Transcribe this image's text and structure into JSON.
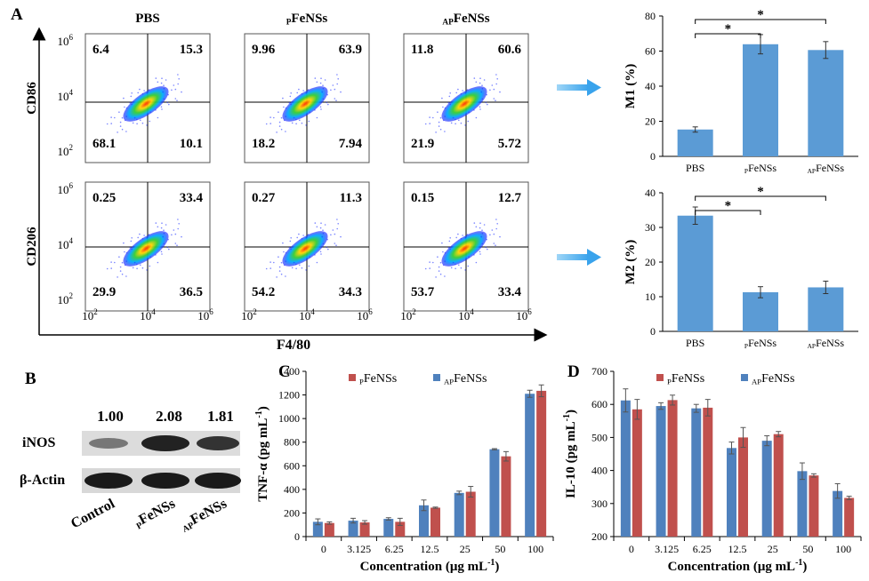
{
  "panel_letters": {
    "a": "A",
    "b": "B",
    "c": "C",
    "d": "D"
  },
  "flow": {
    "columns": [
      {
        "name": "PBS",
        "prefix": "",
        "body": "PBS"
      },
      {
        "name": "PFeNSs",
        "prefix": "P",
        "body": "FeNSs"
      },
      {
        "name": "APFeNSs",
        "prefix": "AP",
        "body": "FeNSs"
      }
    ],
    "rows": [
      {
        "ylabel": "CD86",
        "quadrants": [
          [
            "6.4",
            "15.3",
            "68.1",
            "10.1"
          ],
          [
            "9.96",
            "63.9",
            "18.2",
            "7.94"
          ],
          [
            "11.8",
            "60.6",
            "21.9",
            "5.72"
          ]
        ]
      },
      {
        "ylabel": "CD206",
        "quadrants": [
          [
            "0.25",
            "33.4",
            "29.9",
            "36.5"
          ],
          [
            "0.27",
            "11.3",
            "54.2",
            "34.3"
          ],
          [
            "0.15",
            "12.7",
            "53.7",
            "33.4"
          ]
        ]
      }
    ],
    "xlabel": "F4/80",
    "tick_base": "10",
    "tick_exps": [
      "2",
      "4",
      "6"
    ]
  },
  "chart_data": [
    {
      "type": "bar",
      "panel": "A-top",
      "ylabel": "M1 (%)",
      "categories": [
        "PBS",
        "PFeNSs",
        "APFeNSs"
      ],
      "category_parts": [
        [
          "",
          "PBS"
        ],
        [
          "P",
          "FeNSs"
        ],
        [
          "AP",
          "FeNSs"
        ]
      ],
      "values": [
        15.3,
        63.9,
        60.6
      ],
      "errors": [
        1.5,
        5.5,
        4.8
      ],
      "ylim": [
        0,
        80
      ],
      "yticks": [
        0,
        20,
        40,
        60,
        80
      ],
      "significance": [
        {
          "from": 0,
          "to": 1,
          "label": "*"
        },
        {
          "from": 0,
          "to": 2,
          "label": "*"
        }
      ],
      "color": "#5b9bd5"
    },
    {
      "type": "bar",
      "panel": "A-bottom",
      "ylabel": "M2 (%)",
      "categories": [
        "PBS",
        "PFeNSs",
        "APFeNSs"
      ],
      "category_parts": [
        [
          "",
          "PBS"
        ],
        [
          "P",
          "FeNSs"
        ],
        [
          "AP",
          "FeNSs"
        ]
      ],
      "values": [
        33.4,
        11.3,
        12.7
      ],
      "errors": [
        2.5,
        1.6,
        1.8
      ],
      "ylim": [
        0,
        40
      ],
      "yticks": [
        0,
        10,
        20,
        30,
        40
      ],
      "significance": [
        {
          "from": 0,
          "to": 1,
          "label": "*"
        },
        {
          "from": 0,
          "to": 2,
          "label": "*"
        }
      ],
      "color": "#5b9bd5"
    },
    {
      "type": "bar",
      "panel": "C",
      "ylabel": "TNF-α (pg mL",
      "ylabel_sup": "-1",
      "ylabel_end": ")",
      "xlabel": "Concentration (μg mL",
      "xlabel_sup": "-1",
      "xlabel_end": ")",
      "categories": [
        "0",
        "3.125",
        "6.25",
        "12.5",
        "25",
        "50",
        "100"
      ],
      "ylim": [
        0,
        1400
      ],
      "yticks": [
        0,
        200,
        400,
        600,
        800,
        1000,
        1200,
        1400
      ],
      "legend": [
        {
          "prefix": "P",
          "body": "FeNSs",
          "color": "#c0504d"
        },
        {
          "prefix": "AP",
          "body": "FeNSs",
          "color": "#4f81bd"
        }
      ],
      "series": [
        {
          "name": "APFeNSs",
          "color": "#4f81bd",
          "values": [
            125,
            135,
            150,
            265,
            370,
            740,
            1210
          ],
          "errors": [
            25,
            20,
            10,
            45,
            15,
            5,
            30
          ]
        },
        {
          "name": "PFeNSs",
          "color": "#c0504d",
          "values": [
            115,
            120,
            125,
            245,
            380,
            680,
            1235
          ],
          "errors": [
            10,
            15,
            30,
            5,
            45,
            40,
            50
          ]
        }
      ]
    },
    {
      "type": "bar",
      "panel": "D",
      "ylabel": "IL-10 (pg mL",
      "ylabel_sup": "-1",
      "ylabel_end": ")",
      "xlabel": "Concentration (μg mL",
      "xlabel_sup": "-1",
      "xlabel_end": ")",
      "categories": [
        "0",
        "3.125",
        "6.25",
        "12.5",
        "25",
        "50",
        "100"
      ],
      "ylim": [
        200,
        700
      ],
      "yticks": [
        200,
        300,
        400,
        500,
        600,
        700
      ],
      "legend": [
        {
          "prefix": "P",
          "body": "FeNSs",
          "color": "#c0504d"
        },
        {
          "prefix": "AP",
          "body": "FeNSs",
          "color": "#4f81bd"
        }
      ],
      "series": [
        {
          "name": "APFeNSs",
          "color": "#4f81bd",
          "values": [
            612,
            595,
            588,
            468,
            490,
            398,
            338
          ],
          "errors": [
            35,
            10,
            12,
            18,
            15,
            25,
            22
          ]
        },
        {
          "name": "PFeNSs",
          "color": "#c0504d",
          "values": [
            585,
            613,
            590,
            500,
            510,
            385,
            317
          ],
          "errors": [
            30,
            15,
            25,
            30,
            8,
            5,
            5
          ]
        }
      ]
    }
  ],
  "western": {
    "densities": [
      "1.00",
      "2.08",
      "1.81"
    ],
    "rows": [
      "iNOS",
      "β-Actin"
    ],
    "lanes": [
      {
        "prefix": "",
        "body": "Control"
      },
      {
        "prefix": "P",
        "body": "FeNSs"
      },
      {
        "prefix": "AP",
        "body": "FeNSs"
      }
    ]
  }
}
